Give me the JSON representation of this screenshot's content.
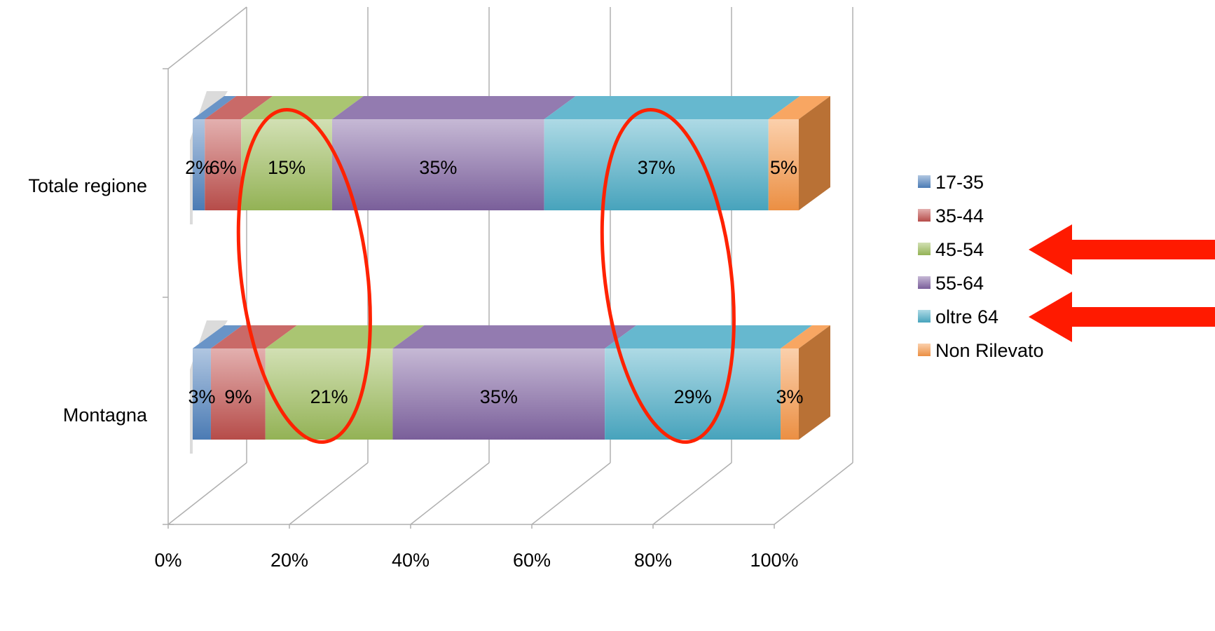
{
  "chart_data": {
    "type": "bar",
    "orientation": "horizontal",
    "stacked": "percent",
    "style": "3d",
    "categories": [
      "Totale regione",
      "Montagna"
    ],
    "series": [
      {
        "name": "17-35",
        "values": [
          2,
          3
        ],
        "labels": [
          "2%",
          "3%"
        ],
        "color": "#4f81bd"
      },
      {
        "name": "35-44",
        "values": [
          6,
          9
        ],
        "labels": [
          "6%",
          "9%"
        ],
        "color": "#c0504d"
      },
      {
        "name": "45-54",
        "values": [
          15,
          21
        ],
        "labels": [
          "15%",
          "21%"
        ],
        "color": "#9bbb59"
      },
      {
        "name": "55-64",
        "values": [
          35,
          35
        ],
        "labels": [
          "35%",
          "35%"
        ],
        "color": "#8064a2"
      },
      {
        "name": "oltre 64",
        "values": [
          37,
          29
        ],
        "labels": [
          "37%",
          "29%"
        ],
        "color": "#4bacc6"
      },
      {
        "name": "Non Rilevato",
        "values": [
          5,
          3
        ],
        "labels": [
          "5%",
          "3%"
        ],
        "color": "#f79646"
      }
    ],
    "xticks": [
      "0%",
      "20%",
      "40%",
      "60%",
      "80%",
      "100%"
    ],
    "xlim": [
      0,
      100
    ],
    "grid": true,
    "legend": "right",
    "annotations": {
      "ellipses": [
        {
          "category_range": [
            "Totale regione",
            "Montagna"
          ],
          "x_range": [
            8,
            30
          ],
          "color": "#ff2200"
        },
        {
          "category_range": [
            "Totale regione",
            "Montagna"
          ],
          "x_range": [
            68,
            90
          ],
          "color": "#ff2200"
        }
      ],
      "arrows": [
        {
          "points_to": "45-54",
          "color": "#ff1a00"
        },
        {
          "points_to": "oltre 64",
          "color": "#ff1a00"
        }
      ]
    }
  }
}
